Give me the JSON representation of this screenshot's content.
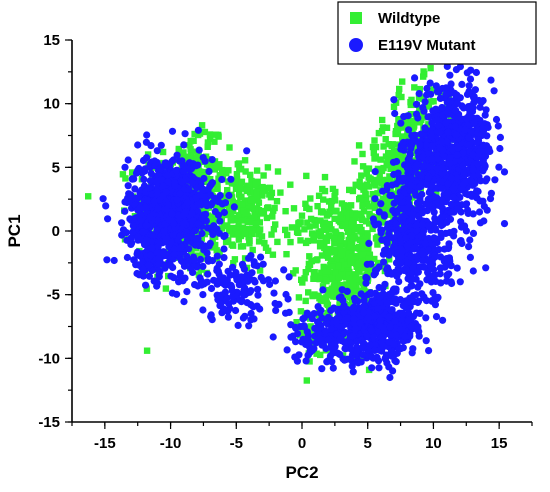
{
  "chart_data": {
    "type": "scatter",
    "xlabel": "PC2",
    "ylabel": "PC1",
    "xlim": [
      -17.5,
      17.5
    ],
    "ylim": [
      -15,
      15
    ],
    "xticks": [
      "-15",
      "-10",
      "-5",
      "0",
      "5",
      "10",
      "15"
    ],
    "yticks": [
      "-15",
      "-10",
      "-5",
      "0",
      "5",
      "10",
      "15"
    ],
    "xtick_values": [
      -15,
      -10,
      -5,
      0,
      5,
      10,
      15
    ],
    "ytick_values": [
      -15,
      -10,
      -5,
      0,
      5,
      10,
      15
    ],
    "legend_position": "top-right",
    "series": [
      {
        "name": "Wildtype",
        "marker": "square",
        "color": "#33ee33",
        "clusters": [
          {
            "cx": -9.0,
            "cy": 1.5,
            "sx": 1.8,
            "sy": 2.6,
            "n": 380
          },
          {
            "cx": -4.2,
            "cy": 1.5,
            "sx": 1.1,
            "sy": 1.6,
            "n": 200
          },
          {
            "cx": -7.8,
            "cy": 5.5,
            "sx": 1.0,
            "sy": 1.4,
            "n": 60
          },
          {
            "cx": 3.2,
            "cy": -2.5,
            "sx": 1.4,
            "sy": 2.8,
            "n": 420
          },
          {
            "cx": 6.8,
            "cy": 3.5,
            "sx": 1.2,
            "sy": 2.0,
            "n": 240
          },
          {
            "cx": 9.0,
            "cy": 7.5,
            "sx": 1.3,
            "sy": 2.0,
            "n": 200
          },
          {
            "cx": 1.0,
            "cy": 0.8,
            "sx": 1.8,
            "sy": 1.6,
            "n": 40
          },
          {
            "cx": 2.0,
            "cy": -7.5,
            "sx": 1.4,
            "sy": 1.6,
            "n": 60
          }
        ]
      },
      {
        "name": "E119V Mutant",
        "marker": "circle",
        "color": "#1a1aff",
        "clusters": [
          {
            "cx": -10.0,
            "cy": 1.5,
            "sx": 1.6,
            "sy": 2.2,
            "n": 900
          },
          {
            "cx": -5.0,
            "cy": -4.5,
            "sx": 1.8,
            "sy": 1.2,
            "n": 140
          },
          {
            "cx": -11.8,
            "cy": -2.0,
            "sx": 0.8,
            "sy": 1.2,
            "n": 60
          },
          {
            "cx": 11.5,
            "cy": 6.0,
            "sx": 1.5,
            "sy": 2.6,
            "n": 700
          },
          {
            "cx": 8.5,
            "cy": -1.5,
            "sx": 1.4,
            "sy": 2.2,
            "n": 350
          },
          {
            "cx": 5.8,
            "cy": -7.5,
            "sx": 1.5,
            "sy": 1.4,
            "n": 420
          },
          {
            "cx": 1.8,
            "cy": -8.0,
            "sx": 1.5,
            "sy": 1.1,
            "n": 150
          },
          {
            "cx": 8.5,
            "cy": 4.0,
            "sx": 1.0,
            "sy": 2.0,
            "n": 120
          }
        ]
      }
    ]
  }
}
